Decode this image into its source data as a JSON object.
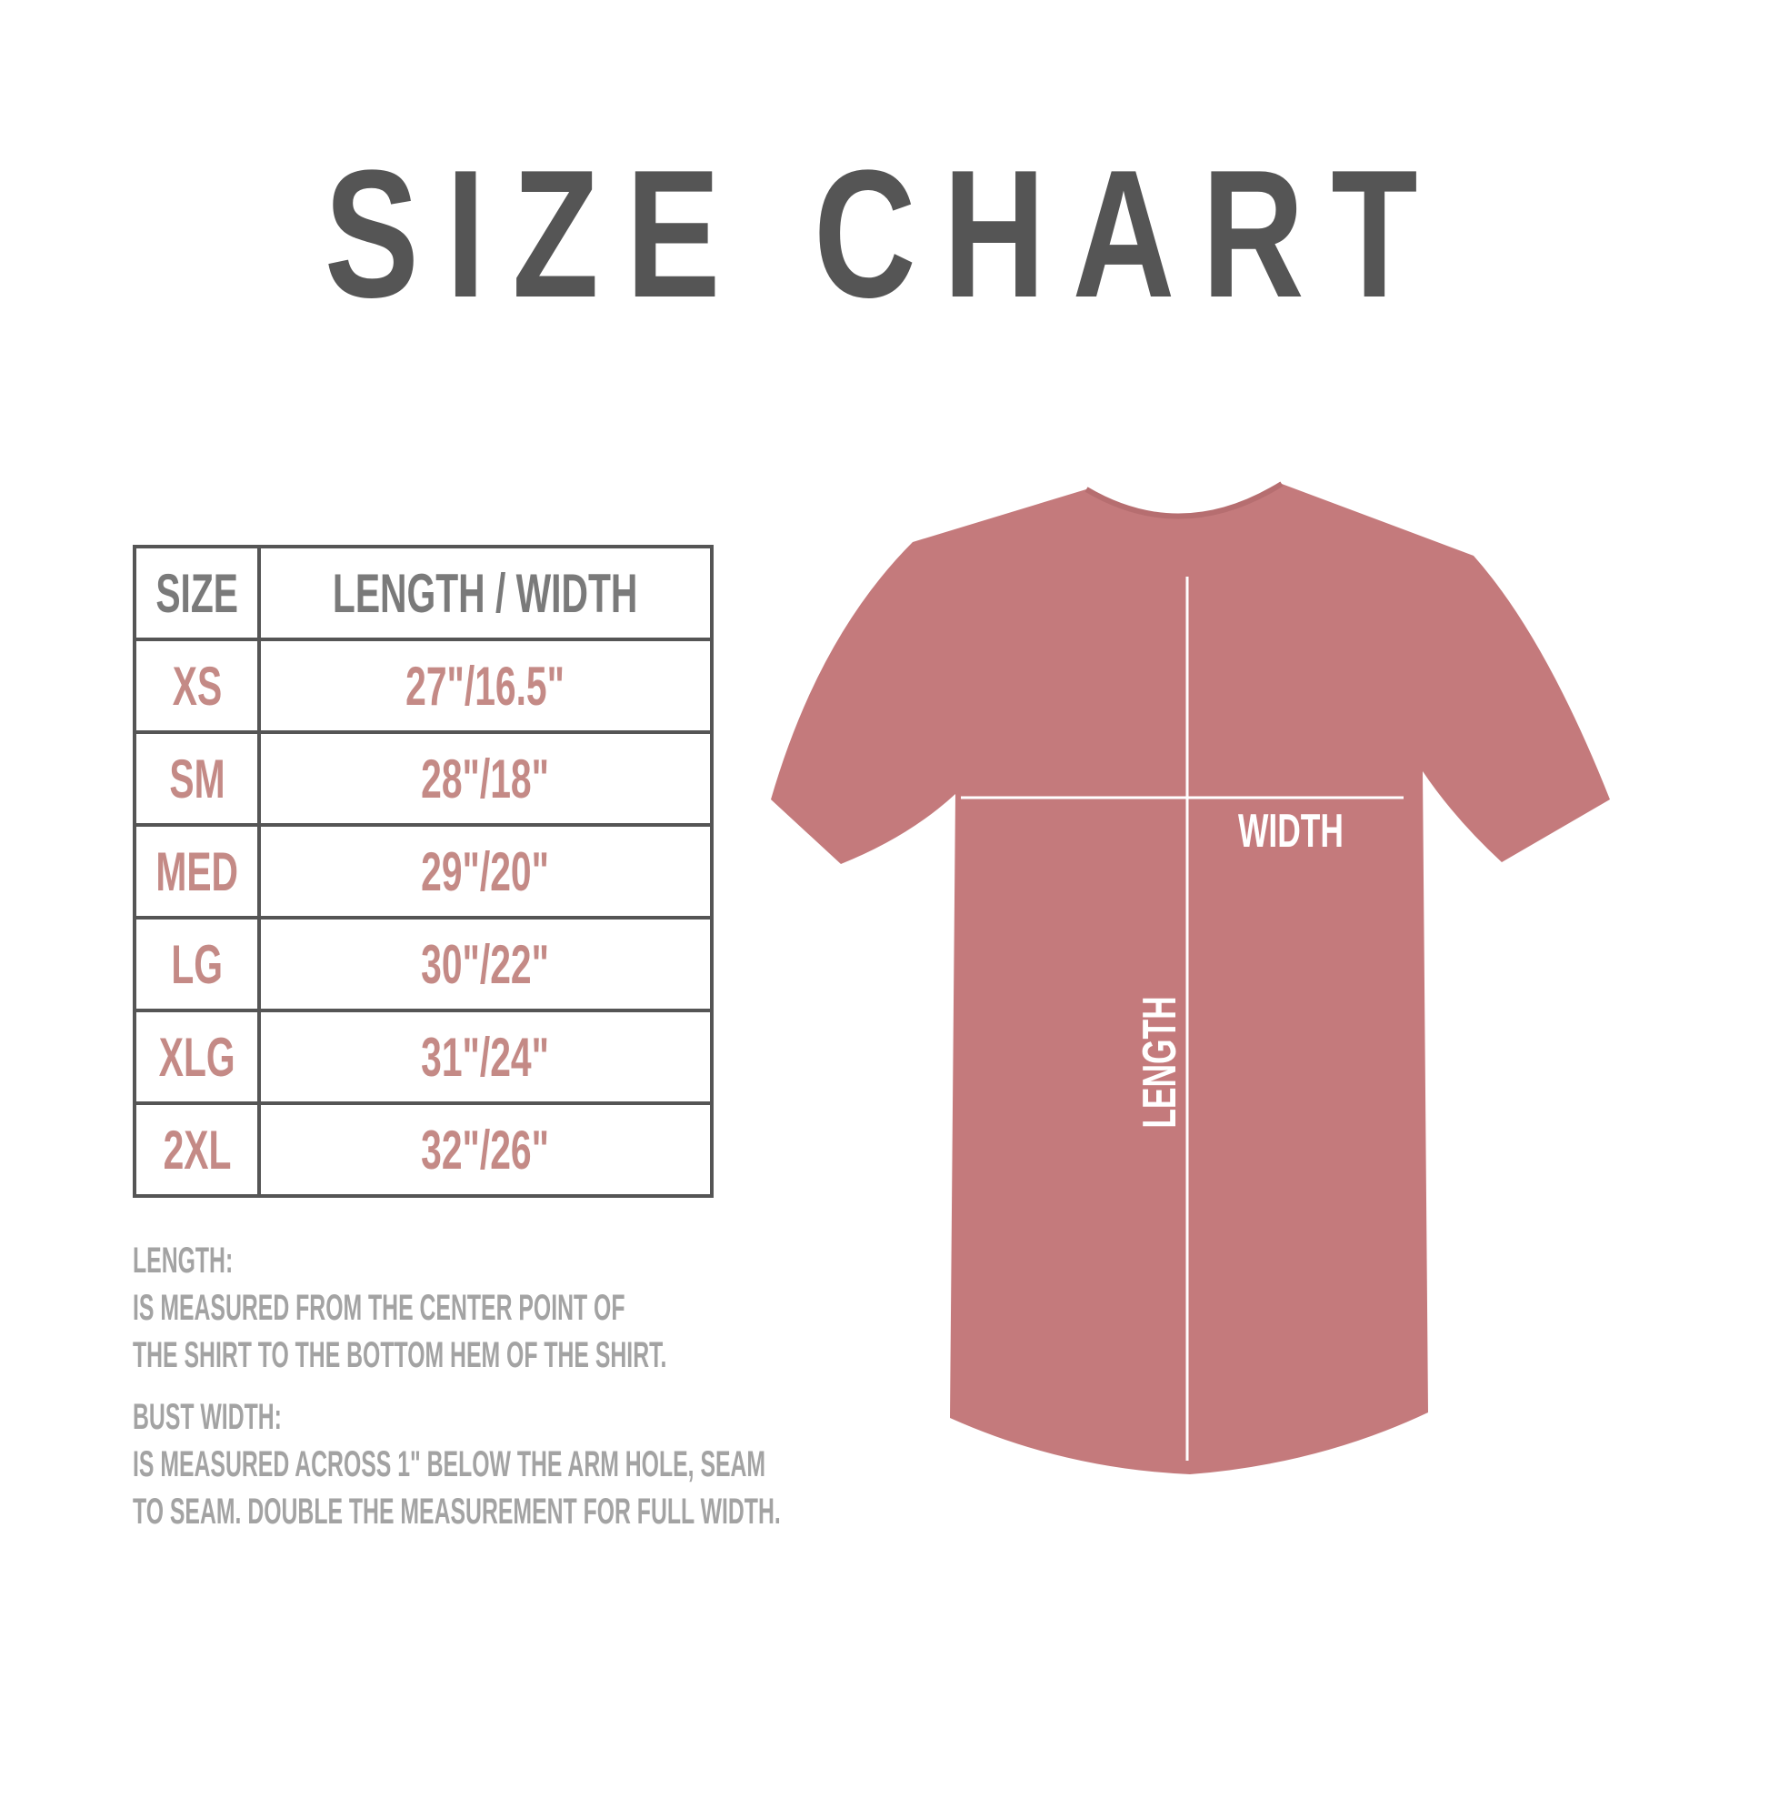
{
  "title": "SIZE CHART",
  "table": {
    "headers": [
      "SIZE",
      "LENGTH / WIDTH"
    ],
    "rows": [
      {
        "size": "XS",
        "measure": "27\"/16.5\""
      },
      {
        "size": "SM",
        "measure": "28\"/18\""
      },
      {
        "size": "MED",
        "measure": "29\"/20\""
      },
      {
        "size": "LG",
        "measure": "30\"/22\""
      },
      {
        "size": "XLG",
        "measure": "31\"/24\""
      },
      {
        "size": "2XL",
        "measure": "32\"/26\""
      }
    ]
  },
  "notes": {
    "length_heading": "LENGTH:",
    "length_line1": "IS MEASURED FROM THE CENTER POINT OF",
    "length_line2": "THE SHIRT TO THE BOTTOM HEM OF THE SHIRT.",
    "width_heading": "BUST WIDTH:",
    "width_line1": "IS MEASURED ACROSS  1\" BELOW THE ARM HOLE, SEAM",
    "width_line2": "TO SEAM. DOUBLE THE MEASUREMENT FOR FULL WIDTH."
  },
  "diagram": {
    "width_label": "WIDTH",
    "length_label": "LENGTH",
    "shirt_color": "#c47a7c"
  },
  "colors": {
    "title": "#555555",
    "header": "#7a7a7a",
    "values": "#c48a86",
    "notes": "#a3a3a3"
  }
}
